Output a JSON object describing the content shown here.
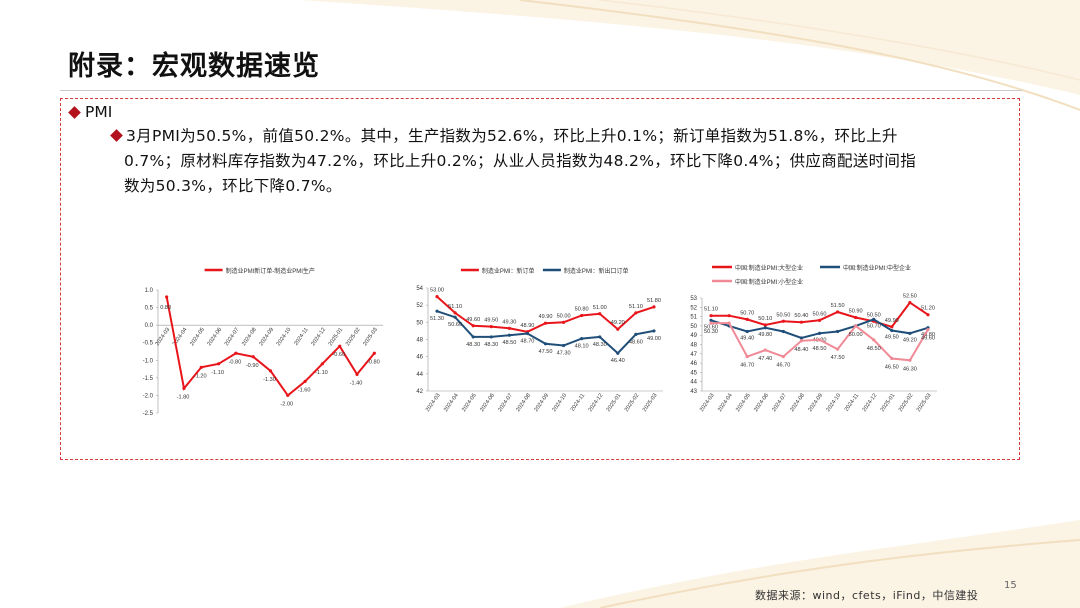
{
  "page": {
    "title": "附录：宏观数据速览",
    "section": "PMI",
    "summary_line1": "3月PMI为50.5%，前值50.2%。其中，生产指数为52.6%，环比上升0.1%；新订单指数为51.8%，环比上升",
    "summary_line2": "0.7%；原材料库存指数为47.2%，环比上升0.2%；从业人员指数为48.2%，环比下降0.4%；供应商配送时间指",
    "summary_line3": "数为50.3%，环比下降0.7%。",
    "source": "数据来源：wind，cfets，iFind，中信建投",
    "page_number": "15"
  },
  "colors": {
    "accent_red": "#e8151b",
    "navy": "#1f4e79",
    "pink": "#f08a96",
    "bullet": "#b3121c",
    "border": "#d23b3b"
  },
  "chart_data": [
    {
      "type": "line",
      "categories": [
        "2024-03",
        "2024-04",
        "2024-05",
        "2024-06",
        "2024-07",
        "2024-08",
        "2024-09",
        "2024-10",
        "2024-11",
        "2024-12",
        "2025-01",
        "2025-02",
        "2025-03"
      ],
      "series": [
        {
          "name": "制造业PMI新订单-制造业PMI生产",
          "color": "#e8151b",
          "values": [
            0.8,
            -1.8,
            -1.2,
            -1.1,
            -0.8,
            -0.9,
            -1.3,
            -2.0,
            -1.6,
            -1.1,
            -0.6,
            -1.4,
            -0.8
          ],
          "labels": [
            "0.80",
            "-1.80",
            "-1.20",
            "-1.10",
            "-0.80",
            "-0.90",
            "-1.30",
            "-2.00",
            "-1.60",
            "-1.10",
            "-0.60",
            "-1.40",
            "-0.80"
          ]
        }
      ],
      "ylim": [
        -2.5,
        1.0
      ],
      "yticks": [
        "1.0",
        "0.5",
        "0.0",
        "-0.5",
        "-1.0",
        "-1.5",
        "-2.0",
        "-2.5"
      ],
      "legend": "top"
    },
    {
      "type": "line",
      "categories": [
        "2024-03",
        "2024-04",
        "2024-05",
        "2024-06",
        "2024-07",
        "2024-08",
        "2024-09",
        "2024-10",
        "2024-11",
        "2024-12",
        "2025-01",
        "2025-02",
        "2025-03"
      ],
      "series": [
        {
          "name": "制造业PMI：新订单",
          "color": "#e8151b",
          "values": [
            53.0,
            51.1,
            49.6,
            49.5,
            49.3,
            48.9,
            49.9,
            50.0,
            50.8,
            51.0,
            49.2,
            51.1,
            51.8
          ],
          "labels": [
            "53.00",
            "51.10",
            "49.60",
            "49.50",
            "49.30",
            "48.90",
            "49.90",
            "50.00",
            "50.80",
            "51.00",
            "49.20",
            "51.10",
            "51.80"
          ]
        },
        {
          "name": "制造业PMI：新出口订单",
          "color": "#1f4e79",
          "values": [
            51.3,
            50.6,
            48.3,
            48.3,
            48.5,
            48.7,
            47.5,
            47.3,
            48.1,
            48.3,
            46.4,
            48.6,
            49.0
          ],
          "labels": [
            "51.30",
            "50.60",
            "48.30",
            "48.30",
            "48.50",
            "48.70",
            "47.50",
            "47.30",
            "48.10",
            "48.30",
            "46.40",
            "48.60",
            "49.00"
          ]
        }
      ],
      "ylim": [
        42,
        54
      ],
      "yticks": [
        "54",
        "52",
        "50",
        "48",
        "46",
        "44",
        "42"
      ],
      "legend": "top"
    },
    {
      "type": "line",
      "categories": [
        "2024-03",
        "2024-04",
        "2024-05",
        "2024-06",
        "2024-07",
        "2024-08",
        "2024-09",
        "2024-10",
        "2024-11",
        "2024-12",
        "2025-01",
        "2025-02",
        "2025-03"
      ],
      "series": [
        {
          "name": "中国:制造业PMI:大型企业",
          "color": "#e8151b",
          "values": [
            51.1,
            51.1,
            50.7,
            50.1,
            50.5,
            50.4,
            50.6,
            51.5,
            50.9,
            50.5,
            49.9,
            52.5,
            51.2
          ],
          "labels": [
            "51.10",
            "",
            "50.70",
            "50.10",
            "50.50",
            "50.40",
            "50.60",
            "51.50",
            "50.90",
            "50.50",
            "49.90",
            "52.50",
            "51.20"
          ]
        },
        {
          "name": "中国:制造业PMI:中型企业",
          "color": "#1f4e79",
          "values": [
            50.6,
            50.0,
            49.4,
            49.8,
            49.4,
            48.7,
            49.2,
            49.4,
            50.0,
            50.7,
            49.5,
            49.2,
            49.8
          ],
          "labels": [
            "50.60",
            "",
            "49.40",
            "49.80",
            "",
            "",
            "49.20",
            "",
            "",
            "50.70",
            "49.50",
            "49.20",
            "49.80"
          ]
        },
        {
          "name": "中国:制造业PMI:小型企业",
          "color": "#f08a96",
          "values": [
            50.3,
            50.3,
            46.7,
            47.4,
            46.7,
            48.4,
            48.5,
            47.5,
            50.0,
            48.5,
            46.5,
            46.3,
            49.6
          ],
          "labels": [
            "50.30",
            "",
            "46.70",
            "47.40",
            "46.70",
            "48.40",
            "48.50",
            "47.50",
            "50.00",
            "48.50",
            "46.50",
            "46.30",
            "49.60"
          ]
        }
      ],
      "ylim": [
        43,
        53
      ],
      "yticks": [
        "53",
        "52",
        "51",
        "50",
        "49",
        "48",
        "47",
        "46",
        "45",
        "44",
        "43"
      ],
      "legend": "top"
    }
  ]
}
